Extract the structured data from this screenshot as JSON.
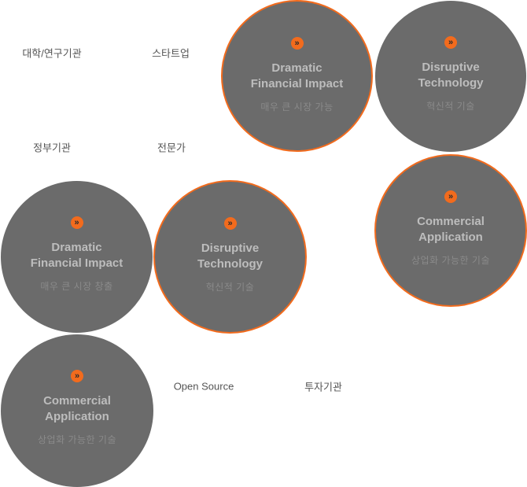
{
  "labels": {
    "university": "대학/연구기관",
    "startup": "스타트업",
    "government": "정부기관",
    "expert": "전문가",
    "open_source": "Open Source",
    "investment": "투자기관"
  },
  "colors": {
    "circle_fill": "#6b6b6b",
    "accent": "#f26b1d",
    "title_text": "#bdbdbd",
    "sub_text": "#8a8a8a"
  },
  "icons": {
    "arrow": "double-chevron-right-icon"
  },
  "circles": {
    "dramatic_top": {
      "arrow": "»",
      "title_1": "Dramatic",
      "title_2": "Financial Impact",
      "sub": "매우 큰 시장 가능"
    },
    "disruptive_top": {
      "arrow": "»",
      "title_1": "Disruptive",
      "title_2": "Technology",
      "sub": "혁신적 기술"
    },
    "commercial_right": {
      "arrow": "»",
      "title_1": "Commercial",
      "title_2": "Application",
      "sub": "상업화 가능한 기술"
    },
    "dramatic_left": {
      "arrow": "»",
      "title_1": "Dramatic",
      "title_2": "Financial Impact",
      "sub": "매우 큰 시장 창출"
    },
    "disruptive_mid": {
      "arrow": "»",
      "title_1": "Disruptive",
      "title_2": "Technology",
      "sub": "혁신적 기술"
    },
    "commercial_bottom": {
      "arrow": "»",
      "title_1": "Commercial",
      "title_2": "Application",
      "sub": "상업화 가능한 기술"
    }
  }
}
